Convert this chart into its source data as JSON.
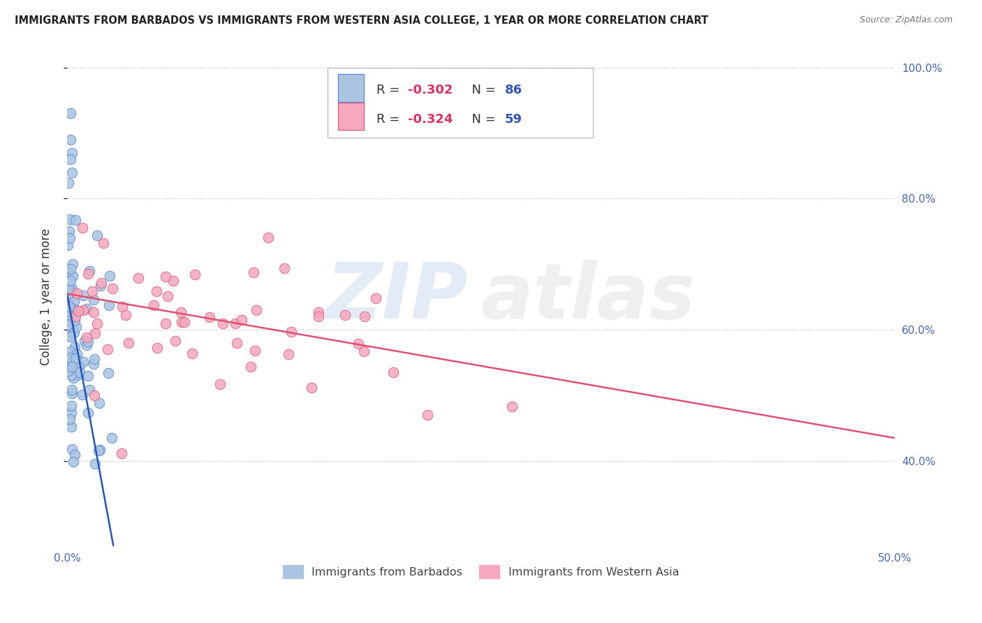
{
  "title": "IMMIGRANTS FROM BARBADOS VS IMMIGRANTS FROM WESTERN ASIA COLLEGE, 1 YEAR OR MORE CORRELATION CHART",
  "source": "Source: ZipAtlas.com",
  "ylabel": "College, 1 year or more",
  "xlim": [
    0.0,
    0.5
  ],
  "ylim": [
    0.27,
    1.03
  ],
  "yticks_right": [
    0.4,
    0.6,
    0.8,
    1.0
  ],
  "ytick_labels_right": [
    "40.0%",
    "60.0%",
    "80.0%",
    "100.0%"
  ],
  "xtick_labels": [
    "0.0%",
    "",
    "",
    "",
    "",
    "50.0%"
  ],
  "xticks": [
    0.0,
    0.1,
    0.2,
    0.3,
    0.4,
    0.5
  ],
  "barbados_color": "#aac4e2",
  "western_asia_color": "#f5a8be",
  "barbados_edge_color": "#5588cc",
  "western_asia_edge_color": "#e05878",
  "trend_barbados_color": "#2255bb",
  "trend_western_asia_color": "#e05070",
  "legend_r_barbados": "-0.302",
  "legend_n_barbados": "86",
  "legend_r_western": "-0.324",
  "legend_n_western": "59",
  "blue_trend_x0": 0.0,
  "blue_trend_y0": 0.655,
  "blue_trend_x1": 0.028,
  "blue_trend_y1": 0.27,
  "pink_trend_x0": 0.0,
  "pink_trend_y0": 0.655,
  "pink_trend_x1": 0.5,
  "pink_trend_y1": 0.435,
  "grid_color": "#ccccdd",
  "tick_color": "#4466bb",
  "watermark_zip_color": "#9ab8e0",
  "watermark_atlas_color": "#c8c8c8"
}
